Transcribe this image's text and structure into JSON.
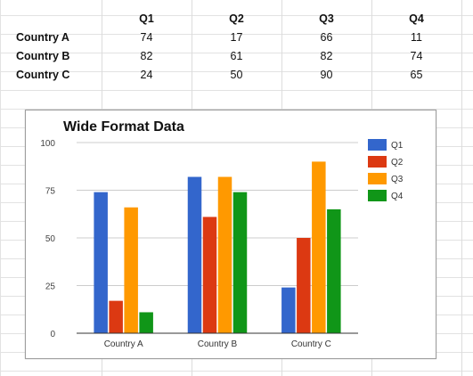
{
  "table": {
    "headers": [
      "Q1",
      "Q2",
      "Q3",
      "Q4"
    ],
    "rows": [
      {
        "label": "Country A",
        "values": [
          "74",
          "17",
          "66",
          "11"
        ]
      },
      {
        "label": "Country B",
        "values": [
          "82",
          "61",
          "82",
          "74"
        ]
      },
      {
        "label": "Country C",
        "values": [
          "24",
          "50",
          "90",
          "65"
        ]
      }
    ]
  },
  "chart_data": {
    "type": "bar",
    "title": "Wide Format Data",
    "xlabel": "",
    "ylabel": "",
    "categories": [
      "Country A",
      "Country B",
      "Country C"
    ],
    "series": [
      {
        "name": "Q1",
        "values": [
          74,
          82,
          24
        ],
        "color": "#3366cc"
      },
      {
        "name": "Q2",
        "values": [
          17,
          61,
          50
        ],
        "color": "#dc3912"
      },
      {
        "name": "Q3",
        "values": [
          66,
          82,
          90
        ],
        "color": "#ff9900"
      },
      {
        "name": "Q4",
        "values": [
          11,
          74,
          65
        ],
        "color": "#109618"
      }
    ],
    "ylim": [
      0,
      100
    ],
    "yticks": [
      "0",
      "25",
      "50",
      "75",
      "100"
    ],
    "grid": true,
    "legend": "right"
  }
}
